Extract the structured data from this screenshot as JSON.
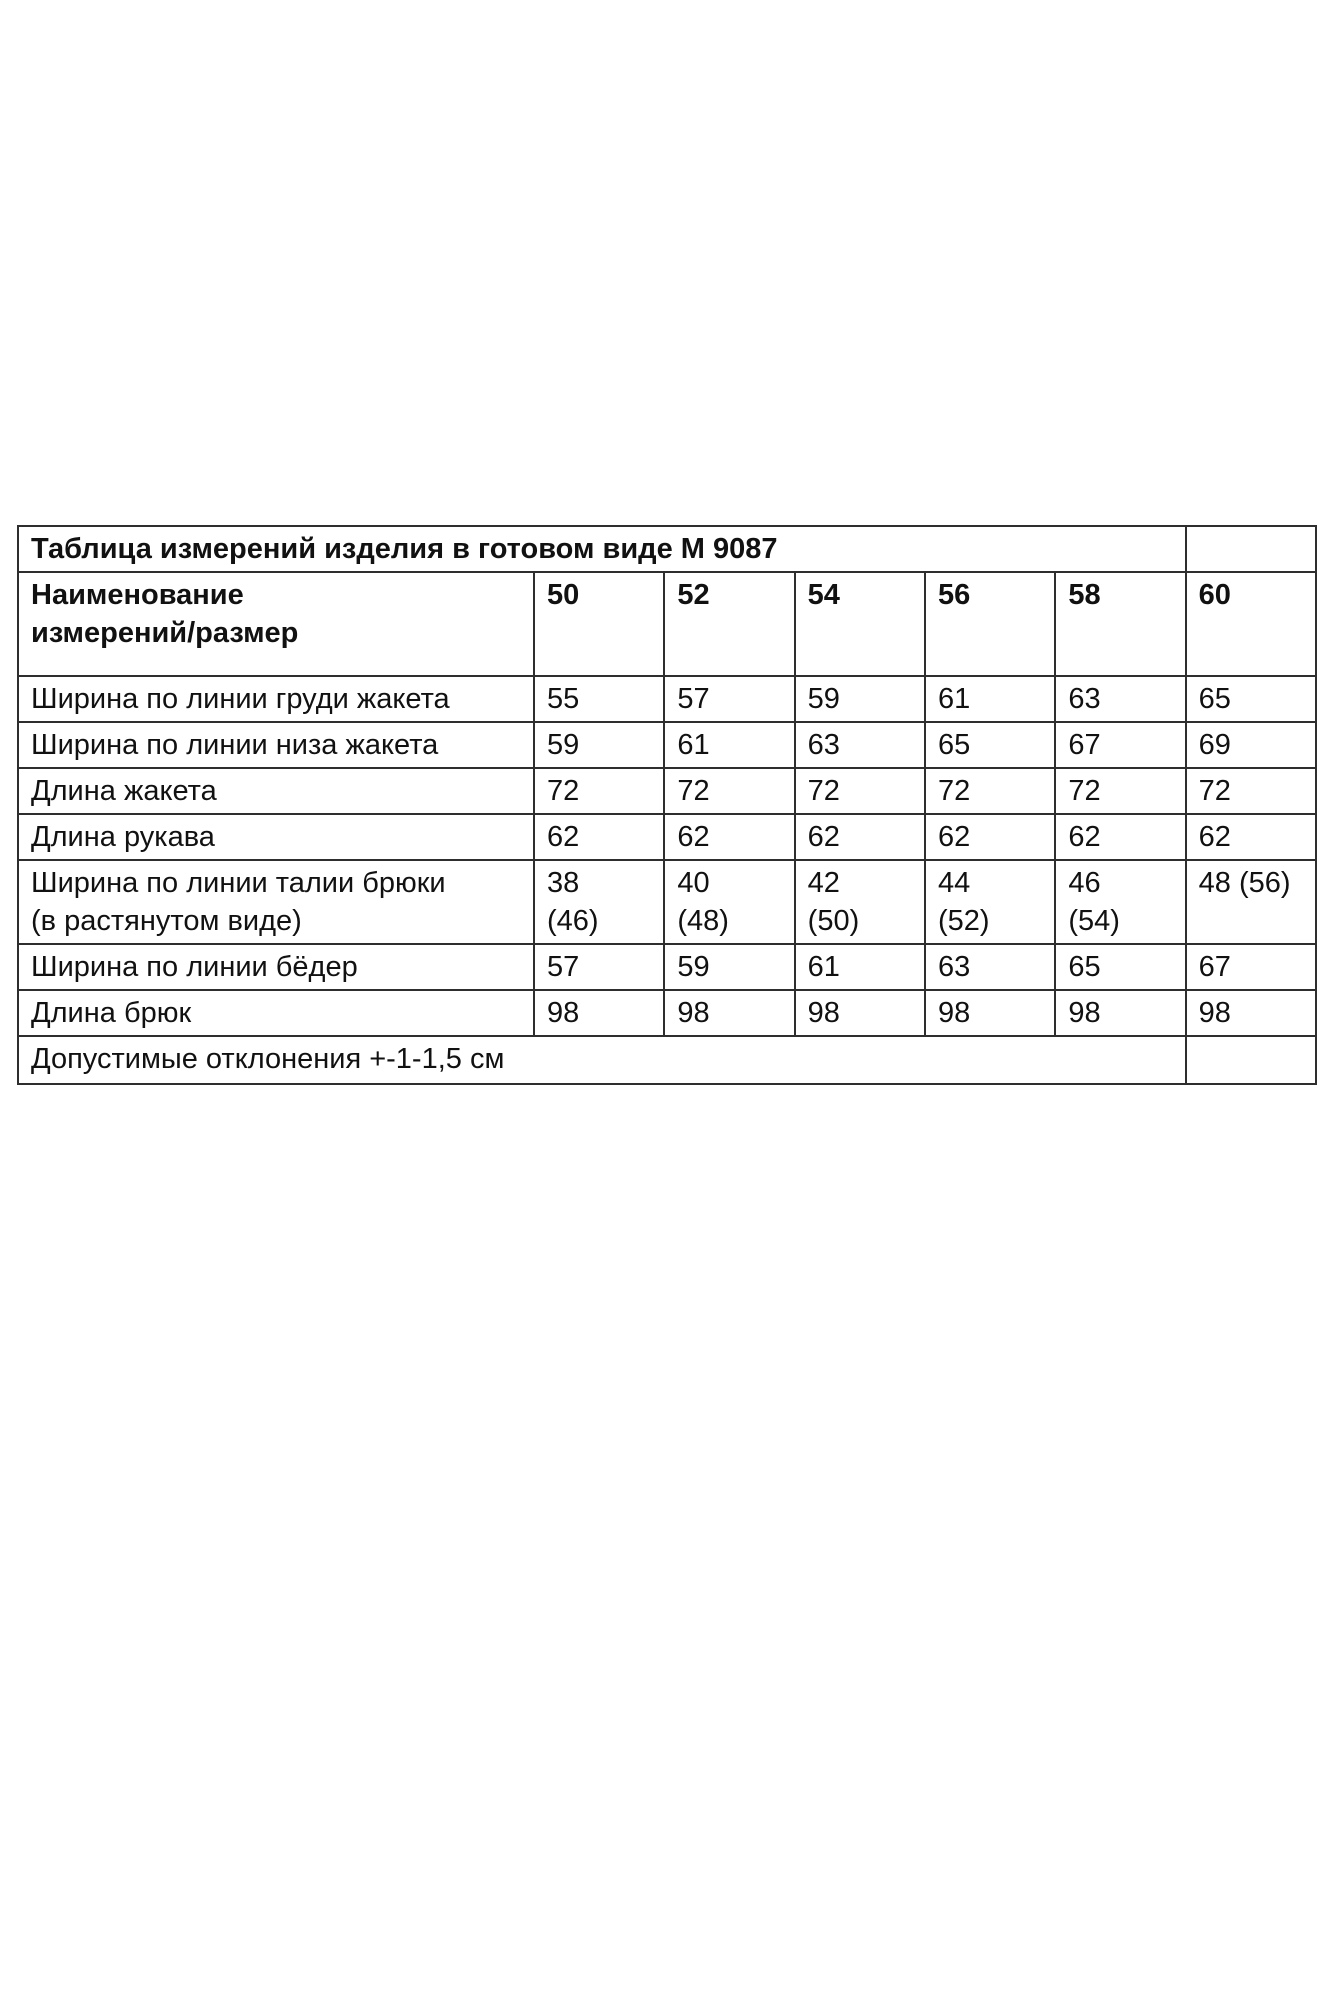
{
  "page": {
    "background_color": "#ffffff",
    "text_color": "#111111",
    "border_color": "#2e2e2e"
  },
  "table": {
    "title": "Таблица измерений изделия в готовом виде М 9087",
    "header": {
      "name_column_line1": "Наименование",
      "name_column_line2": "измерений/размер",
      "sizes": [
        "50",
        "52",
        "54",
        "56",
        "58",
        "60"
      ]
    },
    "rows": [
      {
        "label_lines": [
          "Ширина по линии груди жакета"
        ],
        "values": [
          [
            "55"
          ],
          [
            "57"
          ],
          [
            "59"
          ],
          [
            "61"
          ],
          [
            "63"
          ],
          [
            "65"
          ]
        ]
      },
      {
        "label_lines": [
          "Ширина по линии низа жакета"
        ],
        "values": [
          [
            "59"
          ],
          [
            "61"
          ],
          [
            "63"
          ],
          [
            "65"
          ],
          [
            "67"
          ],
          [
            "69"
          ]
        ]
      },
      {
        "label_lines": [
          "Длина жакета"
        ],
        "values": [
          [
            "72"
          ],
          [
            "72"
          ],
          [
            "72"
          ],
          [
            "72"
          ],
          [
            "72"
          ],
          [
            "72"
          ]
        ]
      },
      {
        "label_lines": [
          "Длина рукава"
        ],
        "values": [
          [
            "62"
          ],
          [
            "62"
          ],
          [
            "62"
          ],
          [
            "62"
          ],
          [
            "62"
          ],
          [
            "62"
          ]
        ]
      },
      {
        "label_lines": [
          "Ширина по линии талии брюки",
          "(в растянутом виде)"
        ],
        "values": [
          [
            "38",
            "(46)"
          ],
          [
            "40",
            "(48)"
          ],
          [
            "42",
            "(50)"
          ],
          [
            "44",
            "(52)"
          ],
          [
            "46",
            "(54)"
          ],
          [
            "48 (56)"
          ]
        ]
      },
      {
        "label_lines": [
          "Ширина по линии бёдер"
        ],
        "values": [
          [
            "57"
          ],
          [
            "59"
          ],
          [
            "61"
          ],
          [
            "63"
          ],
          [
            "65"
          ],
          [
            "67"
          ]
        ]
      },
      {
        "label_lines": [
          "Длина брюк"
        ],
        "values": [
          [
            "98"
          ],
          [
            "98"
          ],
          [
            "98"
          ],
          [
            "98"
          ],
          [
            "98"
          ],
          [
            "98"
          ]
        ]
      }
    ],
    "footer_note": "Допустимые отклонения +-1-1,5 см"
  }
}
